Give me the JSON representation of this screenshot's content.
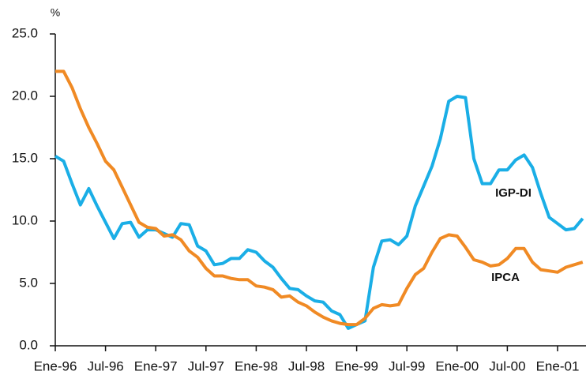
{
  "chart_data": {
    "type": "line",
    "y_unit_label": "%",
    "categories": [
      "Ene-96",
      null,
      null,
      null,
      null,
      null,
      "Jul-96",
      null,
      null,
      null,
      null,
      null,
      "Ene-97",
      null,
      null,
      null,
      null,
      null,
      "Jul-97",
      null,
      null,
      null,
      null,
      null,
      "Ene-98",
      null,
      null,
      null,
      null,
      null,
      "Jul-98",
      null,
      null,
      null,
      null,
      null,
      "Ene-99",
      null,
      null,
      null,
      null,
      null,
      "Jul-99",
      null,
      null,
      null,
      null,
      null,
      "Ene-00",
      null,
      null,
      null,
      null,
      null,
      "Jul-00",
      null,
      null,
      null,
      null,
      null,
      "Ene-01",
      null,
      null,
      null
    ],
    "series": [
      {
        "name": "IGP-DI",
        "color": "#1aaee6",
        "values": [
          15.2,
          14.8,
          13.0,
          11.3,
          12.6,
          11.2,
          9.9,
          8.6,
          9.8,
          9.9,
          8.7,
          9.3,
          9.3,
          9.0,
          8.7,
          9.8,
          9.7,
          8.0,
          7.6,
          6.5,
          6.6,
          7.0,
          7.0,
          7.7,
          7.5,
          6.8,
          6.3,
          5.4,
          4.6,
          4.5,
          4.0,
          3.6,
          3.5,
          2.8,
          2.5,
          1.4,
          1.7,
          2.0,
          6.3,
          8.4,
          8.5,
          8.1,
          8.8,
          11.2,
          12.8,
          14.4,
          16.6,
          19.6,
          20.0,
          19.9,
          15.0,
          13.0,
          13.0,
          14.1,
          14.1,
          14.9,
          15.3,
          14.3,
          12.2,
          10.3,
          9.8,
          9.3,
          9.4,
          10.2
        ]
      },
      {
        "name": "IPCA",
        "color": "#f08a24",
        "values": [
          22.0,
          22.0,
          20.7,
          19.0,
          17.5,
          16.2,
          14.8,
          14.1,
          12.7,
          11.3,
          9.9,
          9.5,
          9.4,
          8.8,
          8.9,
          8.5,
          7.6,
          7.1,
          6.2,
          5.6,
          5.6,
          5.4,
          5.3,
          5.3,
          4.8,
          4.7,
          4.5,
          3.9,
          4.0,
          3.5,
          3.2,
          2.7,
          2.3,
          2.0,
          1.8,
          1.7,
          1.7,
          2.2,
          3.0,
          3.3,
          3.2,
          3.3,
          4.6,
          5.7,
          6.2,
          7.5,
          8.6,
          8.9,
          8.8,
          7.9,
          6.9,
          6.7,
          6.4,
          6.5,
          7.0,
          7.8,
          7.8,
          6.7,
          6.1,
          6.0,
          5.9,
          6.3,
          6.5,
          6.7
        ]
      }
    ],
    "ylim": [
      0,
      25
    ],
    "yticks": [
      {
        "value": 0,
        "label": "0.0"
      },
      {
        "value": 5,
        "label": "5.0"
      },
      {
        "value": 10,
        "label": "10.0"
      },
      {
        "value": 15,
        "label": "15.0"
      },
      {
        "value": 20,
        "label": "20.0"
      },
      {
        "value": 25,
        "label": "25.0"
      }
    ],
    "grid": false
  }
}
